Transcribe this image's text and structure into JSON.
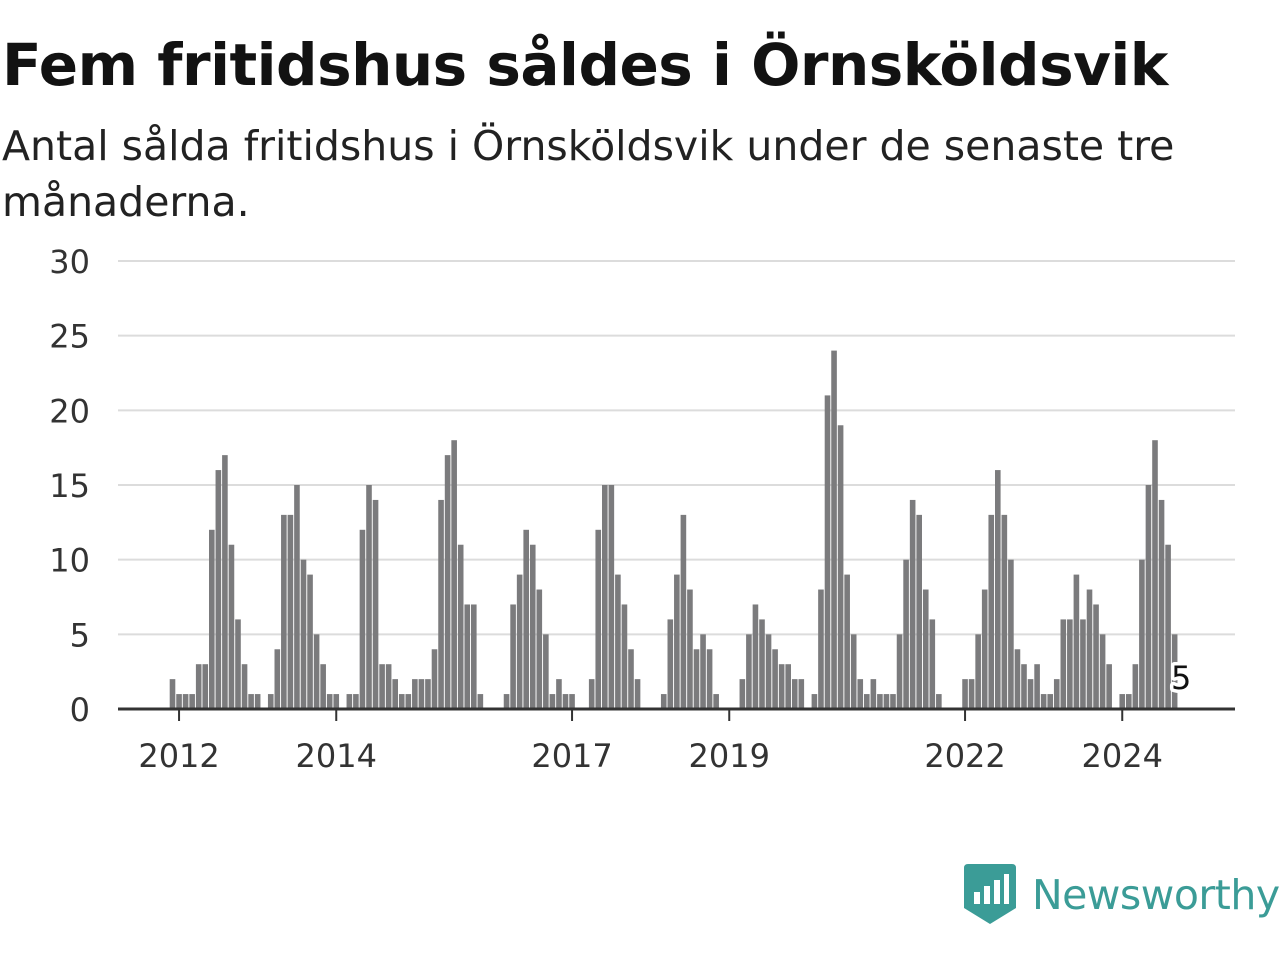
{
  "title": "Fem fritidshus såldes i Örnsköldsvik",
  "subtitle": "Antal sålda fritidshus i Örnsköldsvik under de senaste tre månaderna.",
  "brand": {
    "name": "Newsworthy",
    "icon": "newsworthy-logo-icon",
    "color": "#3b9c97"
  },
  "chart_data": {
    "type": "bar",
    "title": "Fem fritidshus såldes i Örnsköldsvik",
    "subtitle": "Antal sålda fritidshus i Örnsköldsvik under de senaste tre månaderna.",
    "xlabel": "",
    "ylabel": "",
    "ylim": [
      0,
      30
    ],
    "yticks": [
      0,
      5,
      10,
      15,
      20,
      25,
      30
    ],
    "xtick_labels": [
      "2012",
      "2014",
      "2017",
      "2019",
      "2022",
      "2024"
    ],
    "grid": true,
    "bar_color": "#7b7b7d",
    "highlight_color": "#169c97",
    "highlight_label": "5",
    "categories": [
      "2011-12",
      "2012-01",
      "2012-02",
      "2012-03",
      "2012-04",
      "2012-05",
      "2012-06",
      "2012-07",
      "2012-08",
      "2012-09",
      "2012-10",
      "2012-11",
      "2012-12",
      "2013-01",
      "2013-02",
      "2013-03",
      "2013-04",
      "2013-05",
      "2013-06",
      "2013-07",
      "2013-08",
      "2013-09",
      "2013-10",
      "2013-11",
      "2013-12",
      "2014-01",
      "2014-02",
      "2014-03",
      "2014-04",
      "2014-05",
      "2014-06",
      "2014-07",
      "2014-08",
      "2014-09",
      "2014-10",
      "2014-11",
      "2014-12",
      "2015-01",
      "2015-02",
      "2015-03",
      "2015-04",
      "2015-05",
      "2015-06",
      "2015-07",
      "2015-08",
      "2015-09",
      "2015-10",
      "2015-11",
      "2015-12",
      "2016-01",
      "2016-02",
      "2016-03",
      "2016-04",
      "2016-05",
      "2016-06",
      "2016-07",
      "2016-08",
      "2016-09",
      "2016-10",
      "2016-11",
      "2016-12",
      "2017-01",
      "2017-02",
      "2017-03",
      "2017-04",
      "2017-05",
      "2017-06",
      "2017-07",
      "2017-08",
      "2017-09",
      "2017-10",
      "2017-11",
      "2017-12",
      "2018-01",
      "2018-02",
      "2018-03",
      "2018-04",
      "2018-05",
      "2018-06",
      "2018-07",
      "2018-08",
      "2018-09",
      "2018-10",
      "2018-11",
      "2018-12",
      "2019-01",
      "2019-02",
      "2019-03",
      "2019-04",
      "2019-05",
      "2019-06",
      "2019-07",
      "2019-08",
      "2019-09",
      "2019-10",
      "2019-11",
      "2019-12",
      "2020-01",
      "2020-02",
      "2020-03",
      "2020-04",
      "2020-05",
      "2020-06",
      "2020-07",
      "2020-08",
      "2020-09",
      "2020-10",
      "2020-11",
      "2020-12",
      "2021-01",
      "2021-02",
      "2021-03",
      "2021-04",
      "2021-05",
      "2021-06",
      "2021-07",
      "2021-08",
      "2021-09",
      "2021-10",
      "2021-11",
      "2021-12",
      "2022-01",
      "2022-02",
      "2022-03",
      "2022-04",
      "2022-05",
      "2022-06",
      "2022-07",
      "2022-08",
      "2022-09",
      "2022-10",
      "2022-11",
      "2022-12",
      "2023-01",
      "2023-02",
      "2023-03",
      "2023-04",
      "2023-05",
      "2023-06",
      "2023-07",
      "2023-08",
      "2023-09",
      "2023-10",
      "2023-11",
      "2023-12",
      "2024-01",
      "2024-02",
      "2024-03",
      "2024-04",
      "2024-05",
      "2024-06",
      "2024-07",
      "2024-08",
      "2024-09",
      "2024-10"
    ],
    "values": [
      2,
      1,
      1,
      1,
      3,
      3,
      12,
      16,
      17,
      11,
      6,
      3,
      1,
      1,
      0,
      1,
      4,
      13,
      13,
      15,
      10,
      9,
      5,
      3,
      1,
      1,
      0,
      1,
      1,
      12,
      15,
      14,
      3,
      3,
      2,
      1,
      1,
      2,
      2,
      2,
      4,
      14,
      17,
      18,
      11,
      7,
      7,
      1,
      0,
      0,
      0,
      1,
      7,
      9,
      12,
      11,
      8,
      5,
      1,
      2,
      1,
      1,
      0,
      0,
      2,
      12,
      15,
      15,
      9,
      7,
      4,
      2,
      0,
      0,
      0,
      1,
      6,
      9,
      13,
      8,
      4,
      5,
      4,
      1,
      0,
      0,
      0,
      2,
      5,
      7,
      6,
      5,
      4,
      3,
      3,
      2,
      2,
      0,
      1,
      8,
      21,
      24,
      19,
      9,
      5,
      2,
      1,
      2,
      1,
      1,
      1,
      5,
      10,
      14,
      13,
      8,
      6,
      1,
      0,
      0,
      0,
      2,
      2,
      5,
      8,
      13,
      16,
      13,
      10,
      4,
      3,
      2,
      3,
      1,
      1,
      2,
      6,
      6,
      9,
      6,
      8,
      7,
      5,
      3,
      0,
      1,
      1,
      3,
      10,
      15,
      18,
      14,
      11,
      5,
      0
    ]
  }
}
